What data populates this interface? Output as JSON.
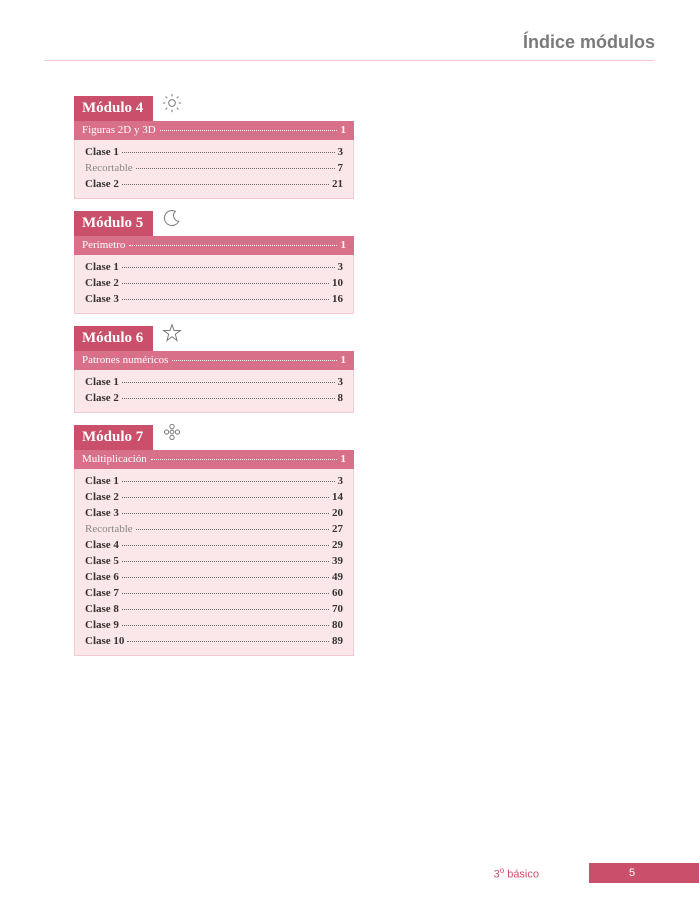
{
  "header": {
    "title": "Índice módulos"
  },
  "colors": {
    "title_bg": "#c94f6a",
    "subtitle_bg": "#d9708a",
    "list_bg": "#fbe6ea",
    "icon_stroke": "#7a7a7a"
  },
  "modules": [
    {
      "title": "Módulo 4",
      "icon": "sun",
      "subtitle": {
        "label": "Figuras 2D y 3D",
        "page": "1"
      },
      "items": [
        {
          "label": "Clase 1",
          "page": "3",
          "style": "bold"
        },
        {
          "label": "Recortable",
          "page": "7",
          "style": "muted"
        },
        {
          "label": "Clase 2",
          "page": "21",
          "style": "bold"
        }
      ]
    },
    {
      "title": "Módulo 5",
      "icon": "moon",
      "subtitle": {
        "label": "Perímetro",
        "page": "1"
      },
      "items": [
        {
          "label": "Clase 1",
          "page": "3",
          "style": "bold"
        },
        {
          "label": "Clase 2",
          "page": "10",
          "style": "bold"
        },
        {
          "label": "Clase 3",
          "page": "16",
          "style": "bold"
        }
      ]
    },
    {
      "title": "Módulo 6",
      "icon": "star",
      "subtitle": {
        "label": "Patrones numéricos",
        "page": "1"
      },
      "items": [
        {
          "label": "Clase 1",
          "page": "3",
          "style": "bold"
        },
        {
          "label": "Clase 2",
          "page": "8",
          "style": "bold"
        }
      ]
    },
    {
      "title": "Módulo 7",
      "icon": "flower",
      "subtitle": {
        "label": "Multiplicación",
        "page": "1"
      },
      "items": [
        {
          "label": "Clase 1",
          "page": "3",
          "style": "bold"
        },
        {
          "label": "Clase 2",
          "page": "14",
          "style": "bold"
        },
        {
          "label": "Clase 3",
          "page": "20",
          "style": "bold"
        },
        {
          "label": "Recortable",
          "page": "27",
          "style": "muted"
        },
        {
          "label": "Clase 4",
          "page": "29",
          "style": "bold"
        },
        {
          "label": "Clase 5",
          "page": "39",
          "style": "bold"
        },
        {
          "label": "Clase 6",
          "page": "49",
          "style": "bold"
        },
        {
          "label": "Clase 7",
          "page": "60",
          "style": "bold"
        },
        {
          "label": "Clase 8",
          "page": "70",
          "style": "bold"
        },
        {
          "label": "Clase 9",
          "page": "80",
          "style": "bold"
        },
        {
          "label": "Clase 10",
          "page": "89",
          "style": "bold"
        }
      ]
    }
  ],
  "footer": {
    "grade_prefix": "3",
    "grade_sup": "o",
    "grade_suffix": " básico",
    "page_number": "5"
  }
}
